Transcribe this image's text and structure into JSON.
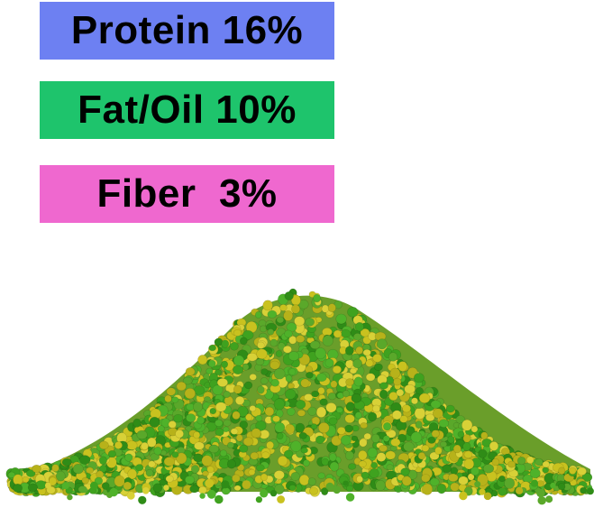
{
  "labels": [
    {
      "text": "Protein 16%"
    },
    {
      "text": "Fat/Oil 10%"
    },
    {
      "text": "Fiber  3%"
    }
  ]
}
